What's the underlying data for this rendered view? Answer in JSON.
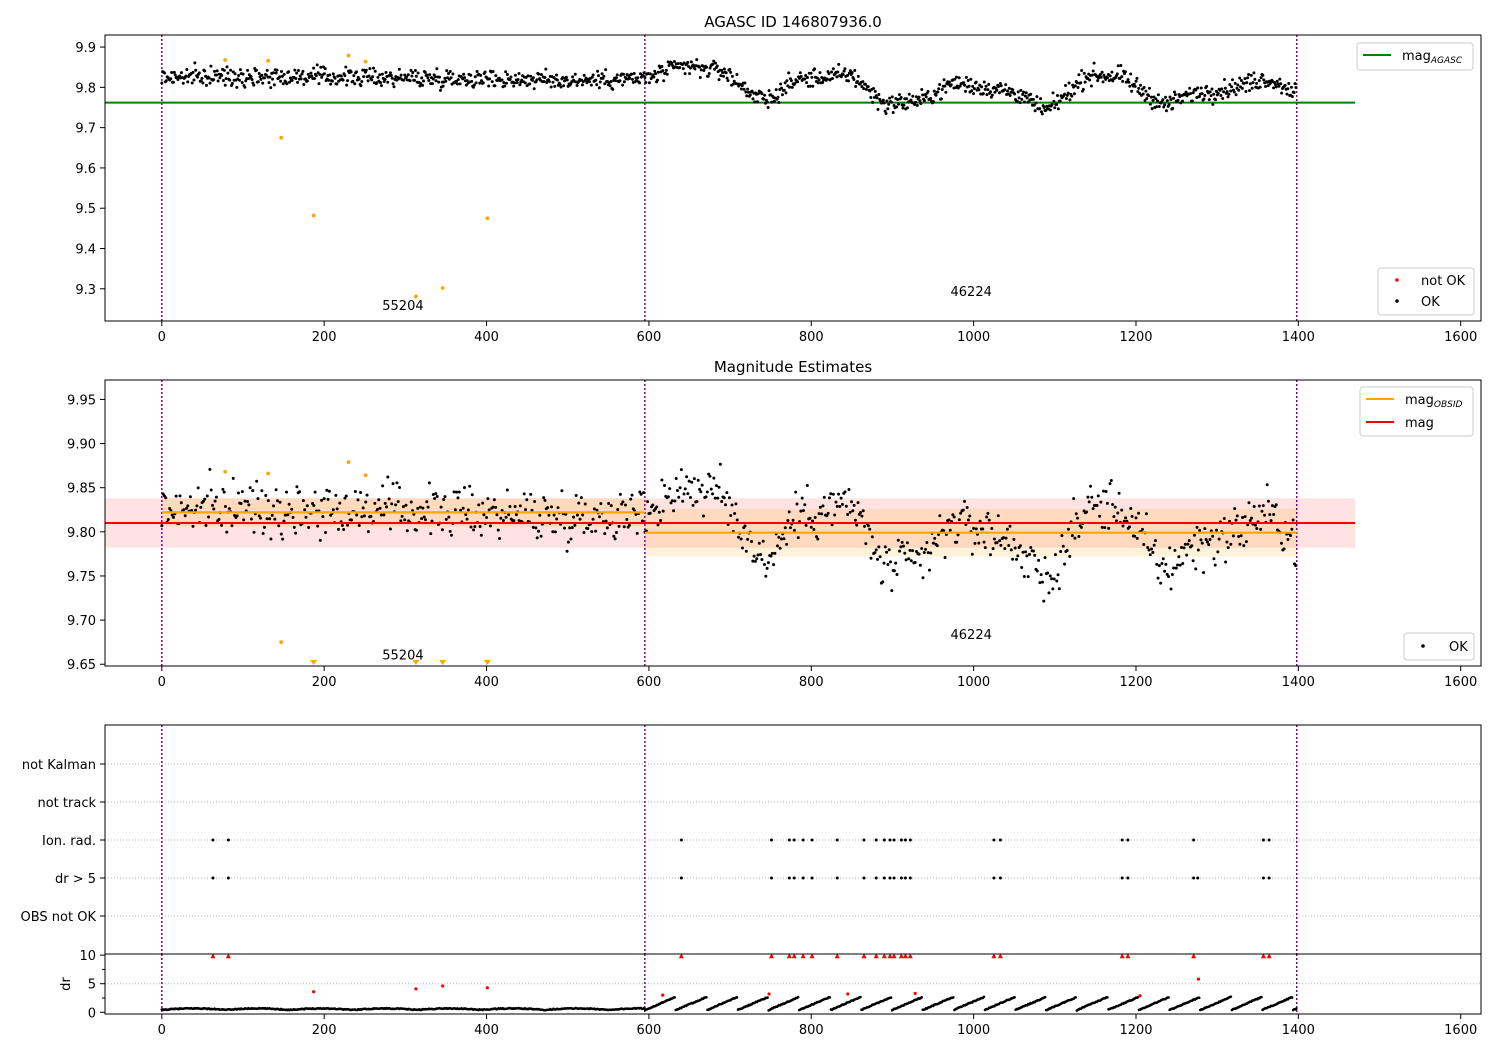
{
  "chart_data": [
    {
      "type": "scatter",
      "title": "AGASC ID 146807936.0",
      "xlim": [
        -70,
        1625
      ],
      "ylim": [
        9.22,
        9.93
      ],
      "xticks": [
        0,
        200,
        400,
        600,
        800,
        1000,
        1200,
        1400,
        1600
      ],
      "yticks": [
        9.3,
        9.4,
        9.5,
        9.6,
        9.7,
        9.8,
        9.9
      ],
      "vlines": [
        0,
        595,
        1398
      ],
      "hline": {
        "y": 9.762,
        "x": [
          -70,
          1470
        ],
        "color": "#008000"
      },
      "annotations": [
        {
          "text": "55204",
          "x": 297,
          "y": 9.26
        },
        {
          "text": "46224",
          "x": 997,
          "y": 9.295
        }
      ],
      "legend_top": [
        {
          "label": "mag",
          "sub": "AGASC",
          "color": "#008000"
        }
      ],
      "legend_bottom": [
        {
          "label": "not OK",
          "color": "#ff0000"
        },
        {
          "label": "OK",
          "color": "#000000"
        }
      ],
      "orange_points": [
        [
          78,
          9.868
        ],
        [
          131,
          9.866
        ],
        [
          230,
          9.879
        ],
        [
          251,
          9.864
        ],
        [
          147,
          9.675
        ],
        [
          187,
          9.482
        ],
        [
          313,
          9.281
        ],
        [
          346,
          9.302
        ],
        [
          401,
          9.475
        ]
      ],
      "trend": [
        [
          0,
          9.825
        ],
        [
          100,
          9.828
        ],
        [
          200,
          9.826
        ],
        [
          300,
          9.824
        ],
        [
          400,
          9.822
        ],
        [
          500,
          9.817
        ],
        [
          595,
          9.822
        ],
        [
          640,
          9.852
        ],
        [
          690,
          9.842
        ],
        [
          720,
          9.795
        ],
        [
          745,
          9.765
        ],
        [
          780,
          9.818
        ],
        [
          850,
          9.832
        ],
        [
          890,
          9.758
        ],
        [
          940,
          9.77
        ],
        [
          975,
          9.812
        ],
        [
          1050,
          9.788
        ],
        [
          1090,
          9.74
        ],
        [
          1140,
          9.83
        ],
        [
          1180,
          9.828
        ],
        [
          1235,
          9.755
        ],
        [
          1270,
          9.785
        ],
        [
          1310,
          9.795
        ],
        [
          1360,
          9.822
        ],
        [
          1398,
          9.79
        ]
      ]
    },
    {
      "type": "scatter",
      "title": "Magnitude Estimates",
      "xlim": [
        -70,
        1625
      ],
      "ylim": [
        9.648,
        9.972
      ],
      "xticks": [
        0,
        200,
        400,
        600,
        800,
        1000,
        1200,
        1400,
        1600
      ],
      "yticks": [
        9.65,
        9.7,
        9.75,
        9.8,
        9.85,
        9.9,
        9.95
      ],
      "vlines": [
        0,
        595,
        1398
      ],
      "mag": {
        "y": 9.81,
        "band": [
          9.782,
          9.838
        ],
        "x": [
          -70,
          1470
        ],
        "color": "#ff0000"
      },
      "mag_obsid": [
        {
          "x": [
            0,
            595
          ],
          "y": 9.822,
          "band": [
            9.806,
            9.838
          ]
        },
        {
          "x": [
            595,
            1398
          ],
          "y": 9.799,
          "band": [
            9.772,
            9.826
          ]
        }
      ],
      "annotations": [
        {
          "text": "55204",
          "x": 297,
          "y": 9.661
        },
        {
          "text": "46224",
          "x": 997,
          "y": 9.684
        }
      ],
      "legend_top": [
        {
          "label": "mag",
          "sub": "OBSID",
          "color": "#ffa500"
        },
        {
          "label": "mag",
          "sub": "",
          "color": "#ff0000"
        }
      ],
      "legend_bottom": [
        {
          "label": "OK",
          "color": "#000000"
        }
      ],
      "orange_points": [
        [
          78,
          9.868
        ],
        [
          131,
          9.866
        ],
        [
          230,
          9.879
        ],
        [
          251,
          9.864
        ],
        [
          147,
          9.675
        ]
      ],
      "low_markers": [
        187,
        313,
        346,
        401
      ]
    },
    {
      "type": "scatter",
      "title": "",
      "xlim": [
        -70,
        1625
      ],
      "categories": [
        "OBS not OK",
        "dr > 5",
        "Ion. rad.",
        "not track",
        "not Kalman"
      ],
      "flag_x": [
        63,
        82,
        640,
        751,
        773,
        779,
        790,
        801,
        832,
        865,
        880,
        890,
        897,
        902,
        911,
        916,
        922,
        1025,
        1033,
        1183,
        1190,
        1271,
        1276,
        1357,
        1364
      ],
      "ionrad_x": [
        63,
        82,
        640,
        751,
        773,
        779,
        790,
        801,
        832,
        865,
        880,
        890,
        897,
        902,
        911,
        916,
        922,
        1025,
        1033,
        1183,
        1190,
        1271,
        1357,
        1364
      ]
    },
    {
      "type": "scatter",
      "title": "",
      "xlim": [
        -70,
        1625
      ],
      "ylim": [
        -0.3,
        10.2
      ],
      "xticks": [
        0,
        200,
        400,
        600,
        800,
        1000,
        1200,
        1400,
        1600
      ],
      "yticks": [
        0,
        5,
        10
      ],
      "ylabel": "dr",
      "red_points": [
        [
          187,
          3.6
        ],
        [
          313,
          4.1
        ],
        [
          346,
          4.6
        ],
        [
          401,
          4.3
        ],
        [
          617,
          3.0
        ],
        [
          748,
          3.2
        ],
        [
          845,
          3.2
        ],
        [
          928,
          3.3
        ],
        [
          1205,
          2.9
        ],
        [
          1277,
          5.8
        ]
      ],
      "red_top_x": [
        63,
        82,
        640,
        751,
        773,
        779,
        790,
        801,
        832,
        865,
        880,
        890,
        897,
        902,
        911,
        916,
        922,
        1025,
        1033,
        1183,
        1190,
        1271,
        1357,
        1364
      ]
    }
  ]
}
